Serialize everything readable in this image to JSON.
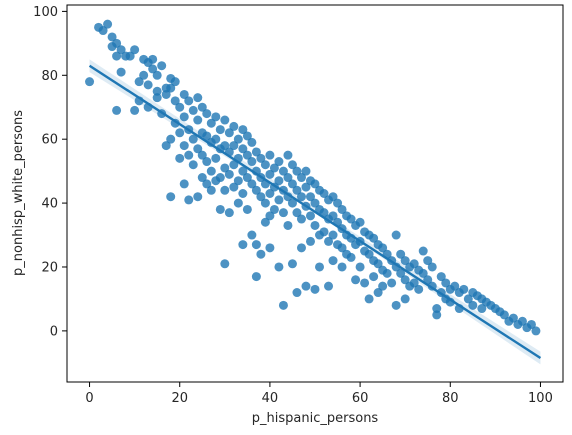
{
  "chart_data": {
    "type": "scatter",
    "title": "",
    "xlabel": "p_hispanic_persons",
    "ylabel": "p_nonhisp_white_persons",
    "xlim": [
      -5,
      105
    ],
    "ylim": [
      -16,
      102
    ],
    "x_ticks": [
      0,
      20,
      40,
      60,
      80,
      100
    ],
    "y_ticks": [
      0,
      20,
      40,
      60,
      80,
      100
    ],
    "x_tick_labels": [
      "0",
      "20",
      "40",
      "60",
      "80",
      "100"
    ],
    "y_tick_labels": [
      "0",
      "20",
      "40",
      "60",
      "80",
      "100"
    ],
    "grid": false,
    "legend": "none",
    "point_color": "#1f77b4",
    "points": [
      [
        0,
        78
      ],
      [
        2,
        95
      ],
      [
        3,
        94
      ],
      [
        4,
        96
      ],
      [
        5,
        92
      ],
      [
        5,
        89
      ],
      [
        6,
        90
      ],
      [
        6,
        69
      ],
      [
        7,
        88
      ],
      [
        6,
        86
      ],
      [
        7,
        81
      ],
      [
        8,
        86
      ],
      [
        9,
        86
      ],
      [
        10,
        88
      ],
      [
        10,
        69
      ],
      [
        11,
        78
      ],
      [
        11,
        72
      ],
      [
        12,
        80
      ],
      [
        12,
        85
      ],
      [
        13,
        84
      ],
      [
        13,
        77
      ],
      [
        13,
        70
      ],
      [
        14,
        82
      ],
      [
        14,
        85
      ],
      [
        15,
        80
      ],
      [
        15,
        75
      ],
      [
        15,
        73
      ],
      [
        16,
        68
      ],
      [
        16,
        83
      ],
      [
        17,
        74
      ],
      [
        17,
        58
      ],
      [
        17,
        76
      ],
      [
        18,
        79
      ],
      [
        18,
        76
      ],
      [
        18,
        60
      ],
      [
        18,
        42
      ],
      [
        19,
        78
      ],
      [
        19,
        72
      ],
      [
        19,
        65
      ],
      [
        20,
        70
      ],
      [
        20,
        62
      ],
      [
        20,
        54
      ],
      [
        21,
        74
      ],
      [
        21,
        67
      ],
      [
        21,
        58
      ],
      [
        21,
        46
      ],
      [
        22,
        72
      ],
      [
        22,
        63
      ],
      [
        22,
        55
      ],
      [
        22,
        41
      ],
      [
        23,
        69
      ],
      [
        23,
        60
      ],
      [
        23,
        52
      ],
      [
        24,
        73
      ],
      [
        24,
        66
      ],
      [
        24,
        57
      ],
      [
        24,
        42
      ],
      [
        25,
        70
      ],
      [
        25,
        62
      ],
      [
        25,
        55
      ],
      [
        25,
        48
      ],
      [
        26,
        68
      ],
      [
        26,
        61
      ],
      [
        26,
        53
      ],
      [
        26,
        46
      ],
      [
        27,
        65
      ],
      [
        27,
        59
      ],
      [
        27,
        50
      ],
      [
        27,
        44
      ],
      [
        28,
        67
      ],
      [
        28,
        60
      ],
      [
        28,
        54
      ],
      [
        28,
        47
      ],
      [
        29,
        63
      ],
      [
        29,
        57
      ],
      [
        29,
        48
      ],
      [
        29,
        38
      ],
      [
        30,
        66
      ],
      [
        30,
        58
      ],
      [
        30,
        51
      ],
      [
        30,
        44
      ],
      [
        30,
        21
      ],
      [
        31,
        62
      ],
      [
        31,
        56
      ],
      [
        31,
        49
      ],
      [
        31,
        37
      ],
      [
        32,
        64
      ],
      [
        32,
        58
      ],
      [
        32,
        52
      ],
      [
        32,
        45
      ],
      [
        33,
        60
      ],
      [
        33,
        54
      ],
      [
        33,
        47
      ],
      [
        33,
        40
      ],
      [
        34,
        63
      ],
      [
        34,
        57
      ],
      [
        34,
        50
      ],
      [
        34,
        43
      ],
      [
        34,
        27
      ],
      [
        35,
        61
      ],
      [
        35,
        55
      ],
      [
        35,
        48
      ],
      [
        35,
        38
      ],
      [
        36,
        59
      ],
      [
        36,
        53
      ],
      [
        36,
        46
      ],
      [
        36,
        30
      ],
      [
        37,
        56
      ],
      [
        37,
        50
      ],
      [
        37,
        44
      ],
      [
        37,
        27
      ],
      [
        37,
        17
      ],
      [
        38,
        54
      ],
      [
        38,
        48
      ],
      [
        38,
        42
      ],
      [
        38,
        24
      ],
      [
        39,
        52
      ],
      [
        39,
        46
      ],
      [
        39,
        40
      ],
      [
        39,
        34
      ],
      [
        40,
        55
      ],
      [
        40,
        49
      ],
      [
        40,
        43
      ],
      [
        40,
        36
      ],
      [
        40,
        26
      ],
      [
        41,
        51
      ],
      [
        41,
        45
      ],
      [
        41,
        38
      ],
      [
        42,
        53
      ],
      [
        42,
        47
      ],
      [
        42,
        41
      ],
      [
        42,
        20
      ],
      [
        43,
        50
      ],
      [
        43,
        44
      ],
      [
        43,
        37
      ],
      [
        43,
        8
      ],
      [
        44,
        55
      ],
      [
        44,
        48
      ],
      [
        44,
        42
      ],
      [
        44,
        33
      ],
      [
        45,
        52
      ],
      [
        45,
        46
      ],
      [
        45,
        40
      ],
      [
        45,
        21
      ],
      [
        46,
        50
      ],
      [
        46,
        44
      ],
      [
        46,
        37
      ],
      [
        46,
        12
      ],
      [
        47,
        48
      ],
      [
        47,
        42
      ],
      [
        47,
        35
      ],
      [
        47,
        26
      ],
      [
        48,
        50
      ],
      [
        48,
        45
      ],
      [
        48,
        39
      ],
      [
        48,
        14
      ],
      [
        49,
        47
      ],
      [
        49,
        42
      ],
      [
        49,
        36
      ],
      [
        49,
        28
      ],
      [
        50,
        46
      ],
      [
        50,
        40
      ],
      [
        50,
        33
      ],
      [
        50,
        13
      ],
      [
        51,
        44
      ],
      [
        51,
        38
      ],
      [
        51,
        30
      ],
      [
        51,
        20
      ],
      [
        52,
        43
      ],
      [
        52,
        37
      ],
      [
        52,
        31
      ],
      [
        53,
        41
      ],
      [
        53,
        35
      ],
      [
        53,
        28
      ],
      [
        53,
        14
      ],
      [
        54,
        42
      ],
      [
        54,
        36
      ],
      [
        54,
        30
      ],
      [
        54,
        22
      ],
      [
        55,
        40
      ],
      [
        55,
        34
      ],
      [
        55,
        27
      ],
      [
        56,
        38
      ],
      [
        56,
        32
      ],
      [
        56,
        26
      ],
      [
        56,
        20
      ],
      [
        57,
        36
      ],
      [
        57,
        30
      ],
      [
        57,
        24
      ],
      [
        58,
        35
      ],
      [
        58,
        29
      ],
      [
        58,
        23
      ],
      [
        59,
        33
      ],
      [
        59,
        27
      ],
      [
        59,
        16
      ],
      [
        60,
        34
      ],
      [
        60,
        28
      ],
      [
        60,
        20
      ],
      [
        61,
        31
      ],
      [
        61,
        25
      ],
      [
        61,
        15
      ],
      [
        62,
        30
      ],
      [
        62,
        24
      ],
      [
        62,
        10
      ],
      [
        63,
        29
      ],
      [
        63,
        22
      ],
      [
        63,
        17
      ],
      [
        64,
        27
      ],
      [
        64,
        21
      ],
      [
        64,
        12
      ],
      [
        65,
        26
      ],
      [
        65,
        19
      ],
      [
        65,
        14
      ],
      [
        66,
        24
      ],
      [
        66,
        18
      ],
      [
        67,
        22
      ],
      [
        67,
        15
      ],
      [
        68,
        30
      ],
      [
        68,
        20
      ],
      [
        68,
        8
      ],
      [
        69,
        24
      ],
      [
        69,
        18
      ],
      [
        70,
        22
      ],
      [
        70,
        16
      ],
      [
        70,
        10
      ],
      [
        71,
        20
      ],
      [
        71,
        14
      ],
      [
        72,
        21
      ],
      [
        72,
        15
      ],
      [
        73,
        19
      ],
      [
        73,
        13
      ],
      [
        74,
        25
      ],
      [
        74,
        18
      ],
      [
        75,
        22
      ],
      [
        75,
        16
      ],
      [
        76,
        20
      ],
      [
        76,
        14
      ],
      [
        77,
        7
      ],
      [
        77,
        5
      ],
      [
        78,
        17
      ],
      [
        78,
        12
      ],
      [
        79,
        15
      ],
      [
        79,
        10
      ],
      [
        80,
        13
      ],
      [
        80,
        9
      ],
      [
        81,
        14
      ],
      [
        82,
        12
      ],
      [
        82,
        7
      ],
      [
        83,
        13
      ],
      [
        84,
        10
      ],
      [
        85,
        12
      ],
      [
        85,
        8
      ],
      [
        86,
        11
      ],
      [
        87,
        10
      ],
      [
        87,
        7
      ],
      [
        88,
        9
      ],
      [
        89,
        8
      ],
      [
        90,
        7
      ],
      [
        91,
        6
      ],
      [
        92,
        5
      ],
      [
        93,
        3
      ],
      [
        94,
        4
      ],
      [
        95,
        2
      ],
      [
        96,
        3
      ],
      [
        97,
        1
      ],
      [
        98,
        2
      ],
      [
        99,
        0
      ]
    ],
    "regression_line": {
      "x": [
        0,
        100
      ],
      "y": [
        83,
        -8.5
      ]
    },
    "confidence_band": {
      "x": [
        0,
        50,
        100
      ],
      "lower": [
        81,
        37,
        -10.5
      ],
      "upper": [
        85,
        38.5,
        -6.5
      ]
    }
  }
}
